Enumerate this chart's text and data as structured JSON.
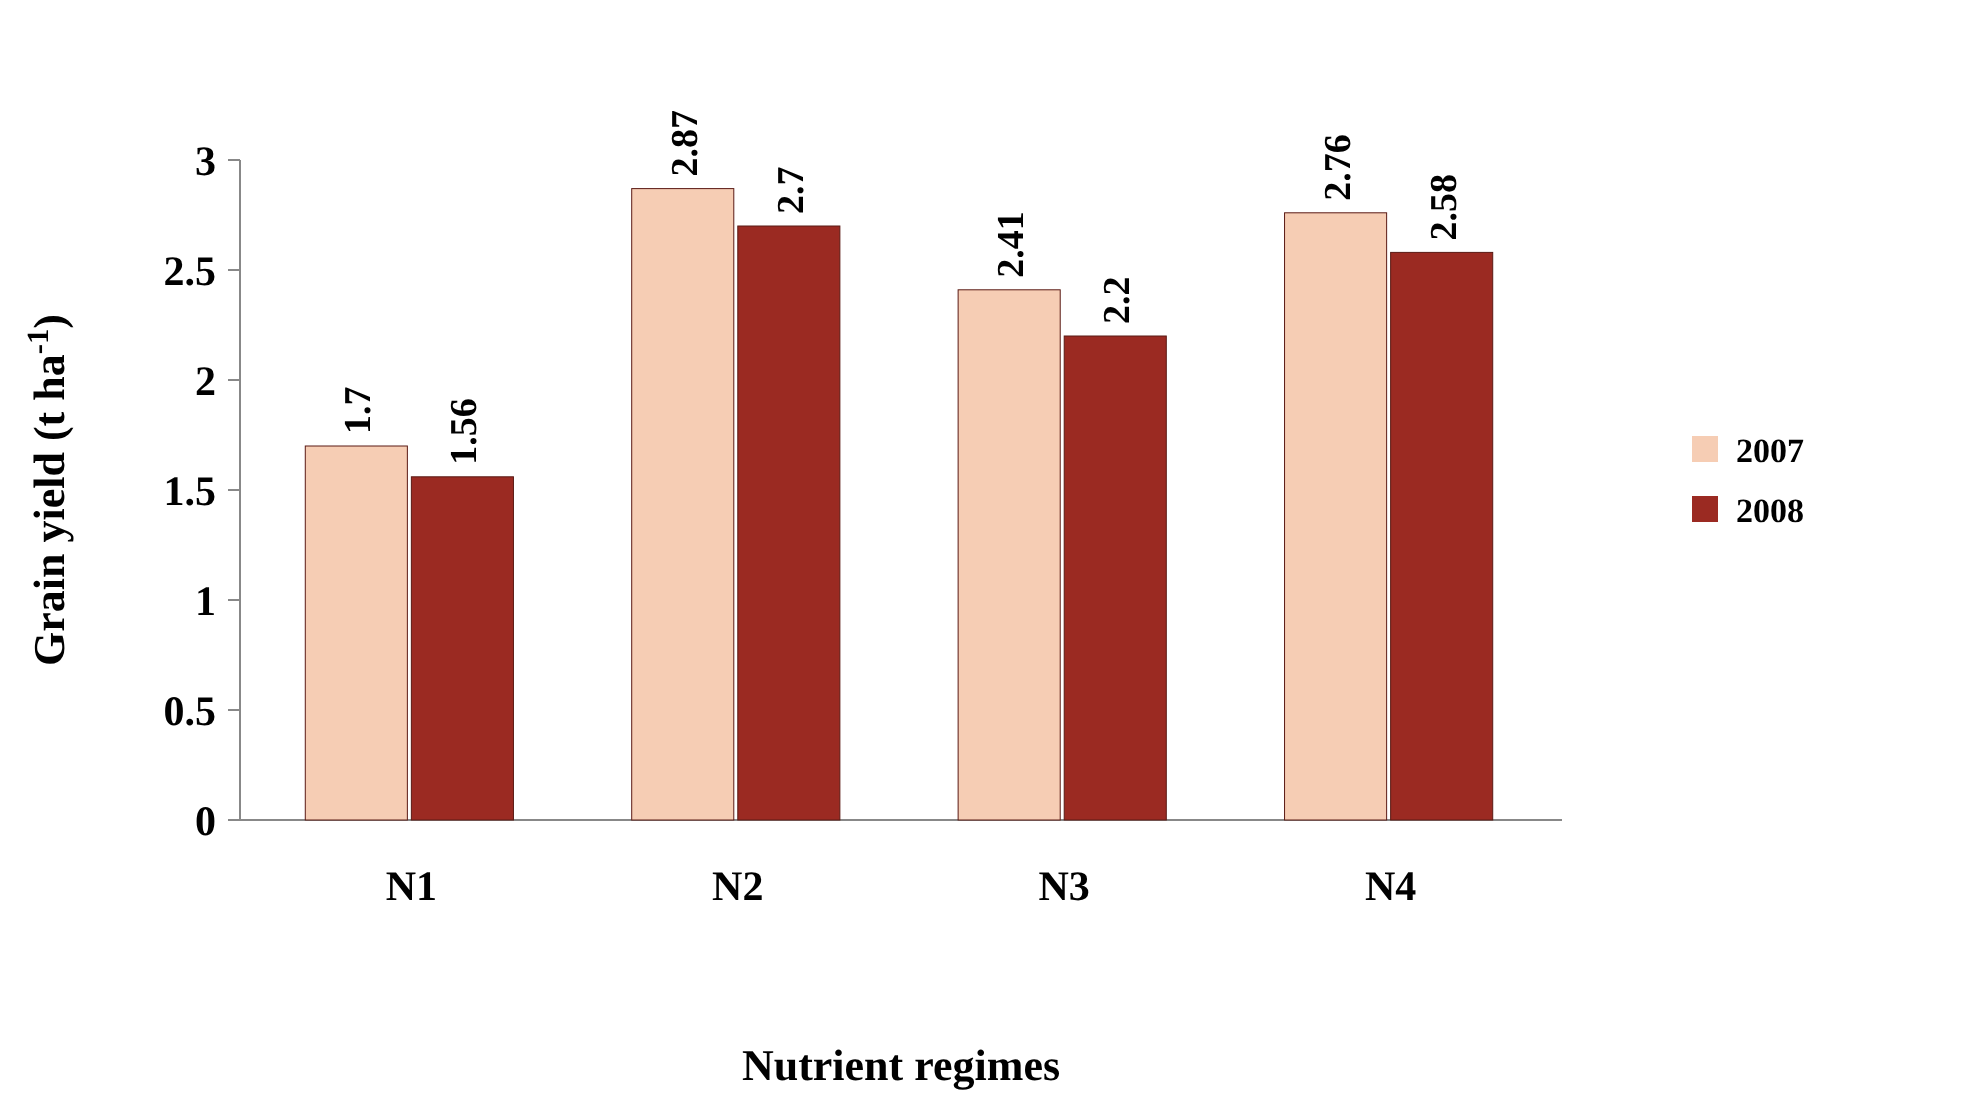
{
  "chart_data": {
    "type": "bar",
    "xlabel": "Nutrient regimes",
    "ylabel": "Grain yield (t ha$^{-1}$)",
    "categories": [
      "N1",
      "N2",
      "N3",
      "N4"
    ],
    "series": [
      {
        "name": "2007",
        "color": "#f6cdb4",
        "values": [
          1.7,
          2.87,
          2.41,
          2.76
        ]
      },
      {
        "name": "2008",
        "color": "#9b2a22",
        "values": [
          1.56,
          2.7,
          2.2,
          2.58
        ]
      }
    ],
    "ylim": [
      0,
      3
    ],
    "yticks": [
      0,
      0.5,
      1,
      1.5,
      2,
      2.5,
      3
    ],
    "data_labels": true,
    "legend": "right",
    "grid": false
  }
}
